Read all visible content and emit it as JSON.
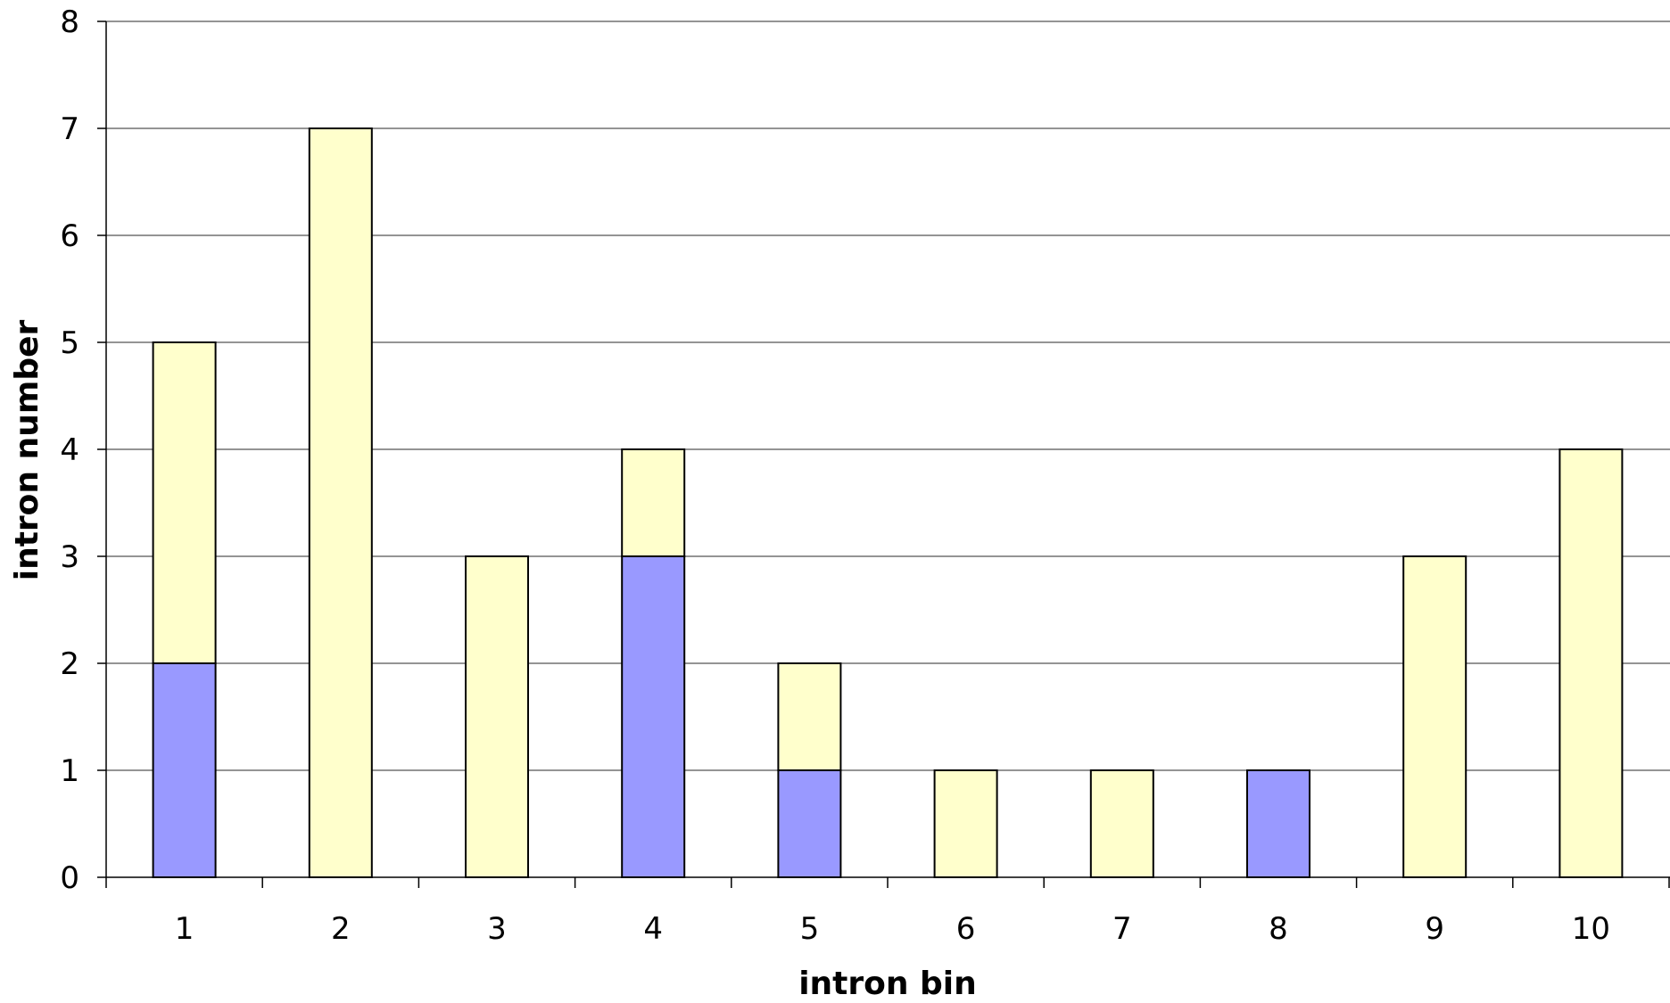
{
  "chart_data": {
    "type": "bar",
    "stacked": true,
    "title": "",
    "xlabel": "intron bin",
    "ylabel": "intron number",
    "categories": [
      "1",
      "2",
      "3",
      "4",
      "5",
      "6",
      "7",
      "8",
      "9",
      "10"
    ],
    "series": [
      {
        "values": [
          2,
          0,
          0,
          3,
          1,
          0,
          0,
          1,
          0,
          0
        ],
        "color": "#9999ff"
      },
      {
        "values": [
          3,
          7,
          3,
          1,
          1,
          1,
          1,
          0,
          3,
          4
        ],
        "color": "#ffffcc"
      }
    ],
    "ylim": [
      0,
      8
    ],
    "yticks": [
      0,
      1,
      2,
      3,
      4,
      5,
      6,
      7,
      8
    ],
    "grid": true,
    "legend": "none"
  }
}
